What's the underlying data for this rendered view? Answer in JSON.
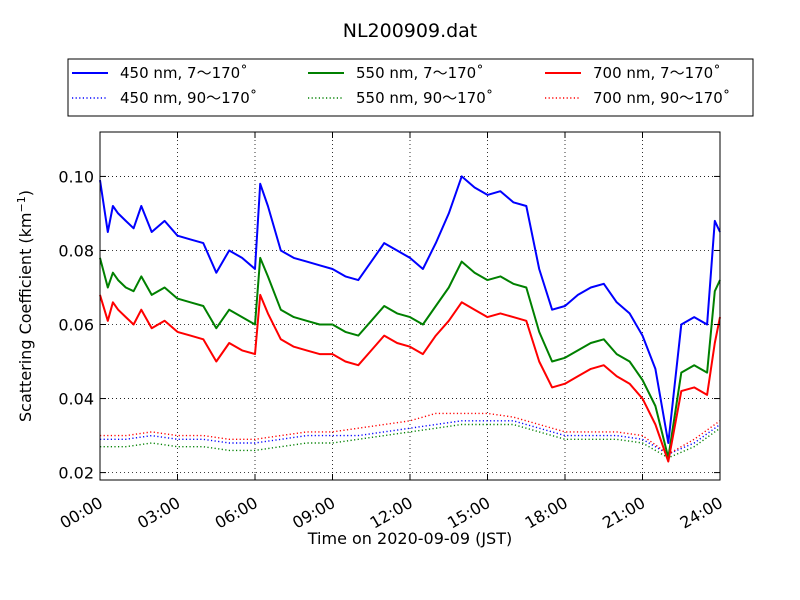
{
  "chart_data": {
    "type": "line",
    "title": "NL200909.dat",
    "xlabel": "Time on 2020-09-09 (JST)",
    "ylabel_main": "Scattering Coefficient (km",
    "ylabel_sup": "−1",
    "ylabel_close": ")",
    "xlim": [
      0,
      24
    ],
    "ylim": [
      0.018,
      0.112
    ],
    "x_ticks": [
      {
        "v": 0,
        "label": "00:00"
      },
      {
        "v": 3,
        "label": "03:00"
      },
      {
        "v": 6,
        "label": "06:00"
      },
      {
        "v": 9,
        "label": "09:00"
      },
      {
        "v": 12,
        "label": "12:00"
      },
      {
        "v": 15,
        "label": "15:00"
      },
      {
        "v": 18,
        "label": "18:00"
      },
      {
        "v": 21,
        "label": "21:00"
      },
      {
        "v": 24,
        "label": "24:00"
      }
    ],
    "y_ticks": [
      {
        "v": 0.02,
        "label": "0.02"
      },
      {
        "v": 0.04,
        "label": "0.04"
      },
      {
        "v": 0.06,
        "label": "0.06"
      },
      {
        "v": 0.08,
        "label": "0.08"
      },
      {
        "v": 0.1,
        "label": "0.10"
      }
    ],
    "grid": true,
    "legend_placement": "top",
    "series": [
      {
        "name": "450 nm, 7～170˚",
        "color": "#0000ff",
        "style": "solid",
        "x": [
          0,
          0.3,
          0.5,
          0.7,
          1.0,
          1.3,
          1.6,
          2.0,
          2.5,
          3.0,
          3.5,
          4.0,
          4.5,
          5.0,
          5.5,
          6.0,
          6.2,
          6.5,
          7.0,
          7.5,
          8.0,
          8.5,
          9.0,
          9.5,
          10.0,
          10.5,
          11.0,
          11.5,
          12.0,
          12.5,
          13.0,
          13.5,
          14.0,
          14.5,
          15.0,
          15.5,
          16.0,
          16.5,
          17.0,
          17.5,
          18.0,
          18.5,
          19.0,
          19.5,
          20.0,
          20.5,
          21.0,
          21.5,
          22.0,
          22.5,
          23.0,
          23.5,
          23.8,
          24.0
        ],
        "y": [
          0.099,
          0.085,
          0.092,
          0.09,
          0.088,
          0.086,
          0.092,
          0.085,
          0.088,
          0.084,
          0.083,
          0.082,
          0.074,
          0.08,
          0.078,
          0.075,
          0.098,
          0.092,
          0.08,
          0.078,
          0.077,
          0.076,
          0.075,
          0.073,
          0.072,
          0.077,
          0.082,
          0.08,
          0.078,
          0.075,
          0.082,
          0.09,
          0.1,
          0.097,
          0.095,
          0.096,
          0.093,
          0.092,
          0.075,
          0.064,
          0.065,
          0.068,
          0.07,
          0.071,
          0.066,
          0.063,
          0.057,
          0.048,
          0.028,
          0.06,
          0.062,
          0.06,
          0.088,
          0.085
        ]
      },
      {
        "name": "550 nm, 7～170˚",
        "color": "#008000",
        "style": "solid",
        "x": [
          0,
          0.3,
          0.5,
          0.7,
          1.0,
          1.3,
          1.6,
          2.0,
          2.5,
          3.0,
          3.5,
          4.0,
          4.5,
          5.0,
          5.5,
          6.0,
          6.2,
          6.5,
          7.0,
          7.5,
          8.0,
          8.5,
          9.0,
          9.5,
          10.0,
          10.5,
          11.0,
          11.5,
          12.0,
          12.5,
          13.0,
          13.5,
          14.0,
          14.5,
          15.0,
          15.5,
          16.0,
          16.5,
          17.0,
          17.5,
          18.0,
          18.5,
          19.0,
          19.5,
          20.0,
          20.5,
          21.0,
          21.5,
          22.0,
          22.5,
          23.0,
          23.5,
          23.8,
          24.0
        ],
        "y": [
          0.078,
          0.07,
          0.074,
          0.072,
          0.07,
          0.069,
          0.073,
          0.068,
          0.07,
          0.067,
          0.066,
          0.065,
          0.059,
          0.064,
          0.062,
          0.06,
          0.078,
          0.073,
          0.064,
          0.062,
          0.061,
          0.06,
          0.06,
          0.058,
          0.057,
          0.061,
          0.065,
          0.063,
          0.062,
          0.06,
          0.065,
          0.07,
          0.077,
          0.074,
          0.072,
          0.073,
          0.071,
          0.07,
          0.058,
          0.05,
          0.051,
          0.053,
          0.055,
          0.056,
          0.052,
          0.05,
          0.045,
          0.038,
          0.024,
          0.047,
          0.049,
          0.047,
          0.069,
          0.072
        ]
      },
      {
        "name": "700 nm, 7～170˚",
        "color": "#ff0000",
        "style": "solid",
        "x": [
          0,
          0.3,
          0.5,
          0.7,
          1.0,
          1.3,
          1.6,
          2.0,
          2.5,
          3.0,
          3.5,
          4.0,
          4.5,
          5.0,
          5.5,
          6.0,
          6.2,
          6.5,
          7.0,
          7.5,
          8.0,
          8.5,
          9.0,
          9.5,
          10.0,
          10.5,
          11.0,
          11.5,
          12.0,
          12.5,
          13.0,
          13.5,
          14.0,
          14.5,
          15.0,
          15.5,
          16.0,
          16.5,
          17.0,
          17.5,
          18.0,
          18.5,
          19.0,
          19.5,
          20.0,
          20.5,
          21.0,
          21.5,
          22.0,
          22.5,
          23.0,
          23.5,
          23.8,
          24.0
        ],
        "y": [
          0.068,
          0.061,
          0.066,
          0.064,
          0.062,
          0.06,
          0.064,
          0.059,
          0.061,
          0.058,
          0.057,
          0.056,
          0.05,
          0.055,
          0.053,
          0.052,
          0.068,
          0.063,
          0.056,
          0.054,
          0.053,
          0.052,
          0.052,
          0.05,
          0.049,
          0.053,
          0.057,
          0.055,
          0.054,
          0.052,
          0.057,
          0.061,
          0.066,
          0.064,
          0.062,
          0.063,
          0.062,
          0.061,
          0.05,
          0.043,
          0.044,
          0.046,
          0.048,
          0.049,
          0.046,
          0.044,
          0.04,
          0.033,
          0.023,
          0.042,
          0.043,
          0.041,
          0.055,
          0.062
        ]
      },
      {
        "name": "450 nm, 90～170˚",
        "color": "#0000ff",
        "style": "dotted",
        "x": [
          0,
          1,
          2,
          3,
          4,
          5,
          6,
          7,
          8,
          9,
          10,
          11,
          12,
          13,
          14,
          15,
          16,
          17,
          18,
          19,
          20,
          21,
          22,
          23,
          24
        ],
        "y": [
          0.029,
          0.029,
          0.03,
          0.029,
          0.029,
          0.028,
          0.028,
          0.029,
          0.03,
          0.03,
          0.03,
          0.031,
          0.032,
          0.033,
          0.034,
          0.034,
          0.034,
          0.032,
          0.03,
          0.03,
          0.03,
          0.029,
          0.025,
          0.028,
          0.033
        ]
      },
      {
        "name": "550 nm, 90～170˚",
        "color": "#008000",
        "style": "dotted",
        "x": [
          0,
          1,
          2,
          3,
          4,
          5,
          6,
          7,
          8,
          9,
          10,
          11,
          12,
          13,
          14,
          15,
          16,
          17,
          18,
          19,
          20,
          21,
          22,
          23,
          24
        ],
        "y": [
          0.027,
          0.027,
          0.028,
          0.027,
          0.027,
          0.026,
          0.026,
          0.027,
          0.028,
          0.028,
          0.029,
          0.03,
          0.031,
          0.032,
          0.033,
          0.033,
          0.033,
          0.031,
          0.029,
          0.029,
          0.029,
          0.028,
          0.024,
          0.027,
          0.032
        ]
      },
      {
        "name": "700 nm, 90～170˚",
        "color": "#ff0000",
        "style": "dotted",
        "x": [
          0,
          1,
          2,
          3,
          4,
          5,
          6,
          7,
          8,
          9,
          10,
          11,
          12,
          13,
          14,
          15,
          16,
          17,
          18,
          19,
          20,
          21,
          22,
          23,
          24
        ],
        "y": [
          0.03,
          0.03,
          0.031,
          0.03,
          0.03,
          0.029,
          0.029,
          0.03,
          0.031,
          0.031,
          0.032,
          0.033,
          0.034,
          0.036,
          0.036,
          0.036,
          0.035,
          0.033,
          0.031,
          0.031,
          0.031,
          0.03,
          0.025,
          0.029,
          0.034
        ]
      }
    ]
  }
}
